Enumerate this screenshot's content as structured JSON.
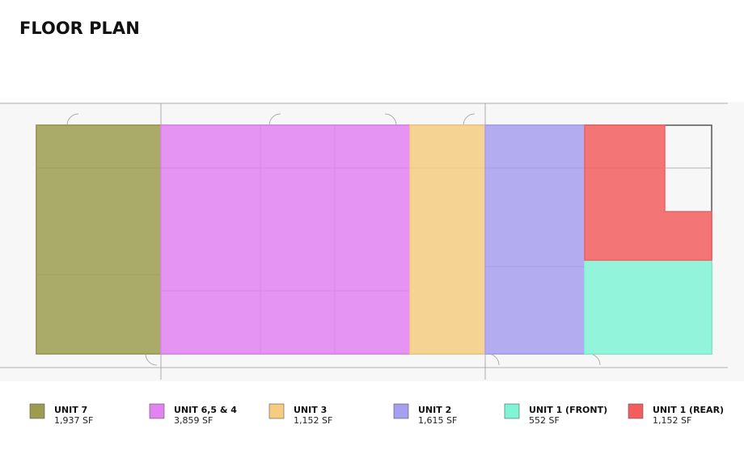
{
  "header": {
    "title": "FLOOR PLAN"
  },
  "units": [
    {
      "name": "UNIT 7",
      "area": "1,937 SF",
      "color": "#9c9c50"
    },
    {
      "name": "UNIT 6,5 & 4",
      "area": "3,859 SF",
      "color": "#e283f2"
    },
    {
      "name": "UNIT 3",
      "area": "1,152 SF",
      "color": "#f5cc80"
    },
    {
      "name": "UNIT 2",
      "area": "1,615 SF",
      "color": "#a79ff0"
    },
    {
      "name": "UNIT 1 (FRONT)",
      "area": "552 SF",
      "color": "#80f5d6"
    },
    {
      "name": "UNIT 1 (REAR)",
      "area": "1,152 SF",
      "color": "#f25e5e"
    }
  ]
}
